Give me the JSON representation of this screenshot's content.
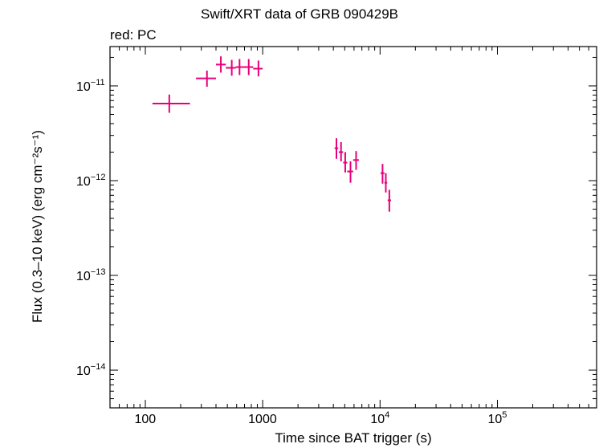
{
  "chart_data": {
    "type": "scatter",
    "title": "Swift/XRT data of GRB 090429B",
    "subtitle": "red: PC",
    "xlabel": "Time since BAT trigger (s)",
    "ylabel": "Flux (0.3–10 keV) (erg cm⁻²s⁻¹)",
    "x_scale": "log",
    "y_scale": "log",
    "xlim": [
      50,
      700000
    ],
    "ylim": [
      4e-15,
      2.6e-11
    ],
    "grid": false,
    "x_ticks": [
      {
        "value": 100,
        "base": "100",
        "exp": ""
      },
      {
        "value": 1000,
        "base": "1000",
        "exp": ""
      },
      {
        "value": 10000,
        "base": "10",
        "exp": "4"
      },
      {
        "value": 100000,
        "base": "10",
        "exp": "5"
      }
    ],
    "y_ticks": [
      {
        "value": 1e-11,
        "base": "10",
        "exp": "−11"
      },
      {
        "value": 1e-12,
        "base": "10",
        "exp": "−12"
      },
      {
        "value": 1e-13,
        "base": "10",
        "exp": "−13"
      },
      {
        "value": 1e-14,
        "base": "10",
        "exp": "−14"
      }
    ],
    "series": [
      {
        "color": "#e8007a",
        "points": [
          {
            "x": 160,
            "xlo": 115,
            "xhi": 240,
            "y": 6.5e-12,
            "ylo": 5.2e-12,
            "yhi": 8.1e-12
          },
          {
            "x": 335,
            "xlo": 270,
            "xhi": 400,
            "y": 1.2e-11,
            "ylo": 9.8e-12,
            "yhi": 1.45e-11
          },
          {
            "x": 440,
            "xlo": 400,
            "xhi": 485,
            "y": 1.68e-11,
            "ylo": 1.38e-11,
            "yhi": 2.05e-11
          },
          {
            "x": 545,
            "xlo": 485,
            "xhi": 590,
            "y": 1.55e-11,
            "ylo": 1.28e-11,
            "yhi": 1.88e-11
          },
          {
            "x": 635,
            "xlo": 590,
            "xhi": 690,
            "y": 1.58e-11,
            "ylo": 1.3e-11,
            "yhi": 1.92e-11
          },
          {
            "x": 760,
            "xlo": 690,
            "xhi": 830,
            "y": 1.58e-11,
            "ylo": 1.3e-11,
            "yhi": 1.92e-11
          },
          {
            "x": 920,
            "xlo": 830,
            "xhi": 1000,
            "y": 1.52e-11,
            "ylo": 1.26e-11,
            "yhi": 1.85e-11
          },
          {
            "x": 4250,
            "xlo": 4100,
            "xhi": 4400,
            "y": 2.2e-12,
            "ylo": 1.7e-12,
            "yhi": 2.8e-12
          },
          {
            "x": 4650,
            "xlo": 4450,
            "xhi": 4850,
            "y": 2e-12,
            "ylo": 1.6e-12,
            "yhi": 2.55e-12
          },
          {
            "x": 5050,
            "xlo": 4850,
            "xhi": 5250,
            "y": 1.55e-12,
            "ylo": 1.22e-12,
            "yhi": 2e-12
          },
          {
            "x": 5600,
            "xlo": 5250,
            "xhi": 5900,
            "y": 1.25e-12,
            "ylo": 9.5e-13,
            "yhi": 1.6e-12
          },
          {
            "x": 6250,
            "xlo": 5900,
            "xhi": 6600,
            "y": 1.65e-12,
            "ylo": 1.3e-12,
            "yhi": 2.05e-12
          },
          {
            "x": 10500,
            "xlo": 10100,
            "xhi": 10900,
            "y": 1.2e-12,
            "ylo": 9.3e-13,
            "yhi": 1.5e-12
          },
          {
            "x": 11200,
            "xlo": 10900,
            "xhi": 11500,
            "y": 9.5e-13,
            "ylo": 7.5e-13,
            "yhi": 1.2e-12
          },
          {
            "x": 12000,
            "xlo": 11600,
            "xhi": 12400,
            "y": 6.2e-13,
            "ylo": 4.7e-13,
            "yhi": 8e-13
          }
        ]
      }
    ]
  }
}
